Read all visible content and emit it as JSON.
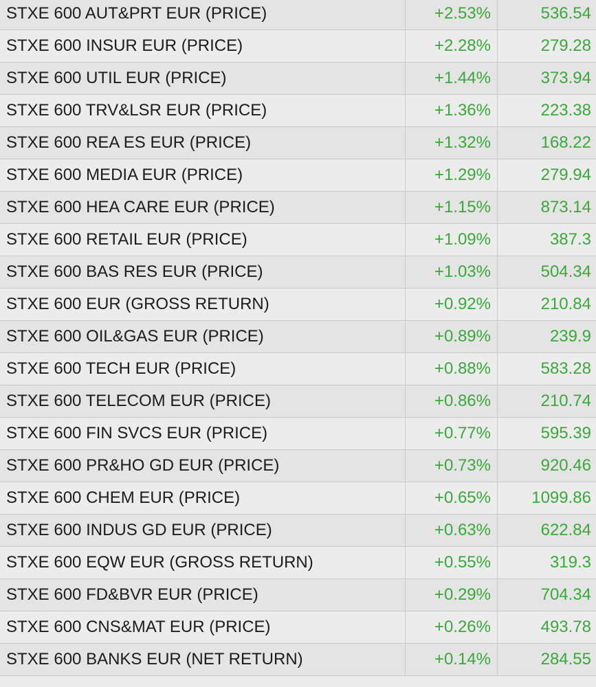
{
  "colors": {
    "positive": "#3aa83a",
    "text": "#1c1c1c",
    "row_a": "#e4e4e4",
    "row_b": "#ececec",
    "divider": "#c9c9c9"
  },
  "rows": [
    {
      "name": "STXE 600 AUT&PRT EUR (PRICE)",
      "change": "+2.53%",
      "price": "536.54"
    },
    {
      "name": "STXE 600 INSUR EUR (PRICE)",
      "change": "+2.28%",
      "price": "279.28"
    },
    {
      "name": "STXE 600 UTIL EUR (PRICE)",
      "change": "+1.44%",
      "price": "373.94"
    },
    {
      "name": "STXE 600 TRV&LSR EUR (PRICE)",
      "change": "+1.36%",
      "price": "223.38"
    },
    {
      "name": "STXE 600 REA ES EUR (PRICE)",
      "change": "+1.32%",
      "price": "168.22"
    },
    {
      "name": "STXE 600 MEDIA EUR (PRICE)",
      "change": "+1.29%",
      "price": "279.94"
    },
    {
      "name": "STXE 600 HEA CARE EUR (PRICE)",
      "change": "+1.15%",
      "price": "873.14"
    },
    {
      "name": "STXE 600 RETAIL EUR (PRICE)",
      "change": "+1.09%",
      "price": "387.3"
    },
    {
      "name": "STXE 600 BAS RES EUR (PRICE)",
      "change": "+1.03%",
      "price": "504.34"
    },
    {
      "name": "STXE 600 EUR (GROSS RETURN)",
      "change": "+0.92%",
      "price": "210.84"
    },
    {
      "name": "STXE 600 OIL&GAS EUR (PRICE)",
      "change": "+0.89%",
      "price": "239.9"
    },
    {
      "name": "STXE 600 TECH EUR (PRICE)",
      "change": "+0.88%",
      "price": "583.28"
    },
    {
      "name": "STXE 600 TELECOM EUR (PRICE)",
      "change": "+0.86%",
      "price": "210.74"
    },
    {
      "name": "STXE 600 FIN SVCS EUR (PRICE)",
      "change": "+0.77%",
      "price": "595.39"
    },
    {
      "name": "STXE 600 PR&HO GD EUR (PRICE)",
      "change": "+0.73%",
      "price": "920.46"
    },
    {
      "name": "STXE 600 CHEM EUR (PRICE)",
      "change": "+0.65%",
      "price": "1099.86"
    },
    {
      "name": "STXE 600 INDUS GD EUR (PRICE)",
      "change": "+0.63%",
      "price": "622.84"
    },
    {
      "name": "STXE 600 EQW EUR (GROSS RETURN)",
      "change": "+0.55%",
      "price": "319.3"
    },
    {
      "name": "STXE 600 FD&BVR EUR (PRICE)",
      "change": "+0.29%",
      "price": "704.34"
    },
    {
      "name": "STXE 600 CNS&MAT EUR (PRICE)",
      "change": "+0.26%",
      "price": "493.78"
    },
    {
      "name": "STXE 600 BANKS EUR (NET RETURN)",
      "change": "+0.14%",
      "price": "284.55"
    }
  ]
}
